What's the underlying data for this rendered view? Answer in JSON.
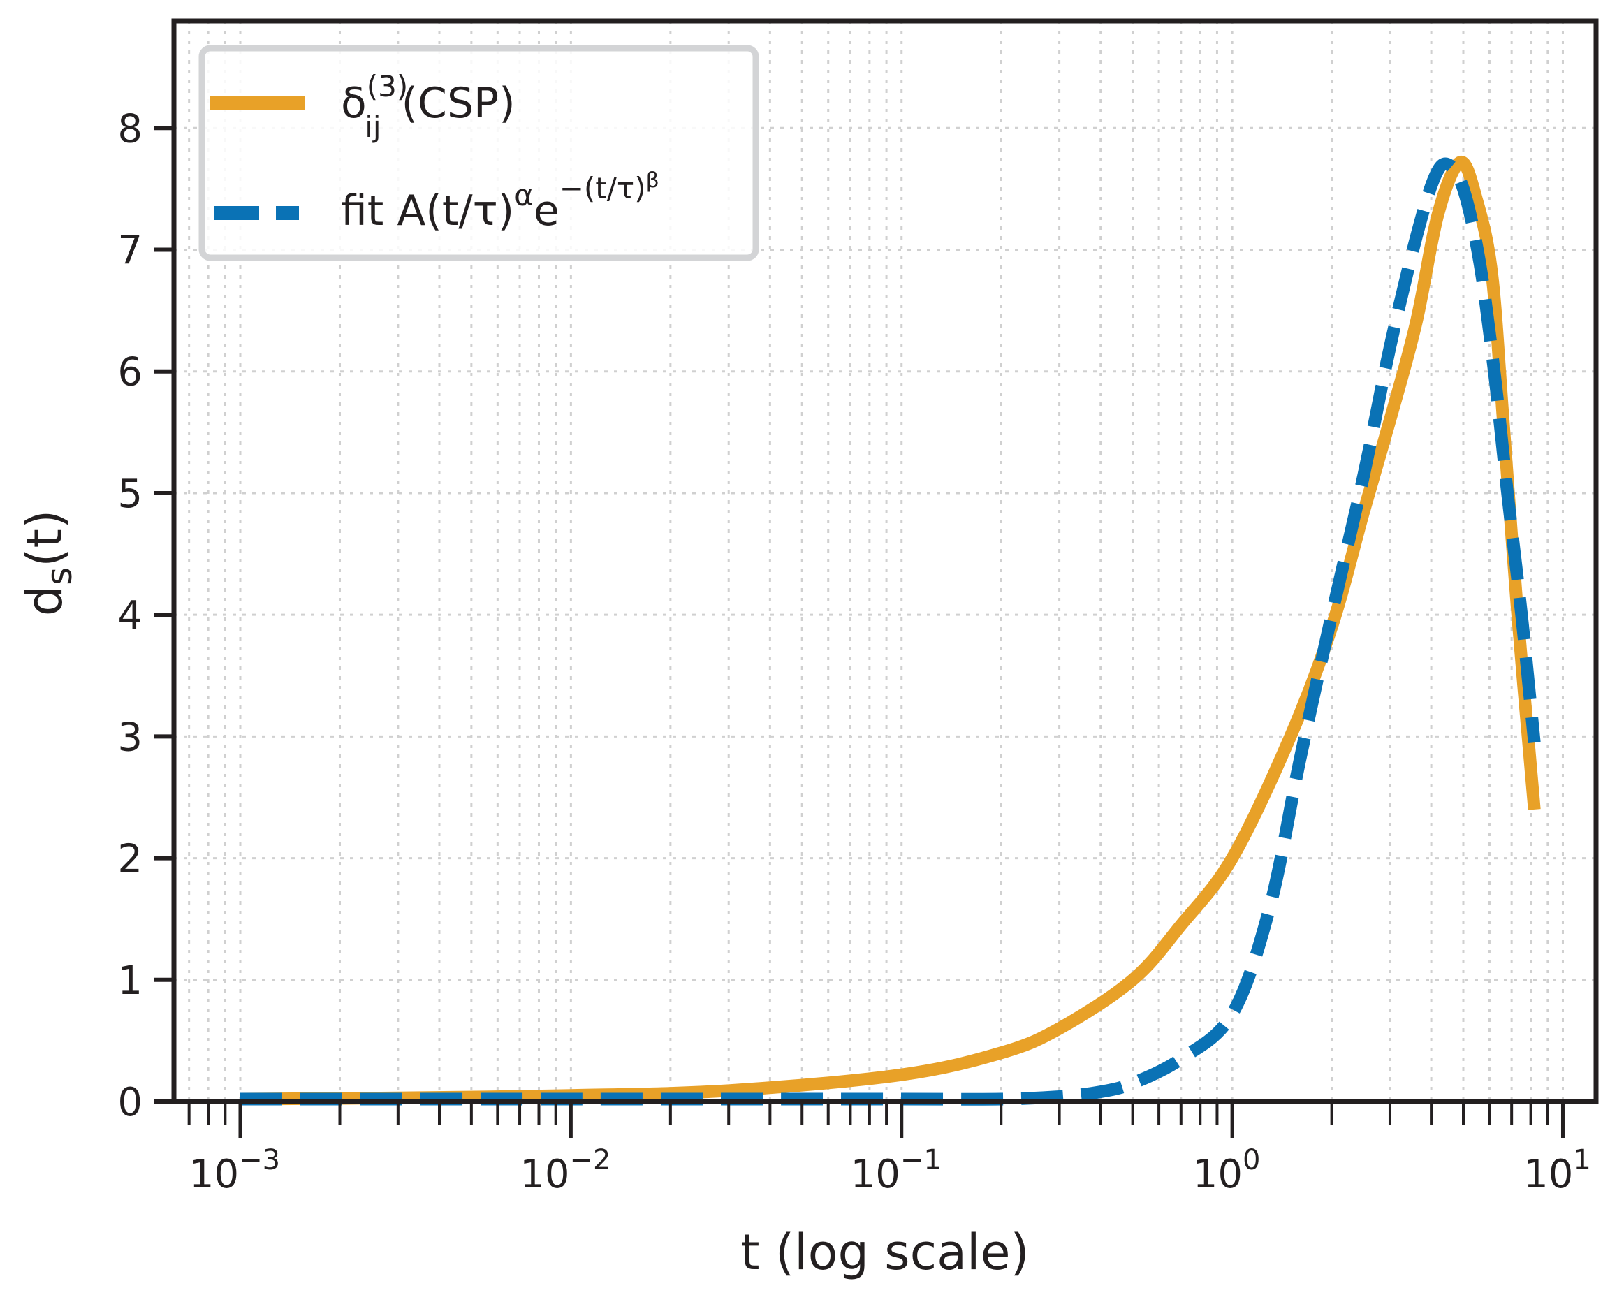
{
  "chart_data": {
    "type": "line",
    "xscale": "log",
    "xlabel": "t (log scale)",
    "ylabel": {
      "base": "d",
      "sub": "s",
      "rest": "(t)"
    },
    "xlim": [
      0.00063,
      12.6
    ],
    "ylim": [
      0,
      8.88
    ],
    "xticks": [
      {
        "value": 0.001,
        "base": "10",
        "exp": "−3"
      },
      {
        "value": 0.01,
        "base": "10",
        "exp": "−2"
      },
      {
        "value": 0.1,
        "base": "10",
        "exp": "−1"
      },
      {
        "value": 1,
        "base": "10",
        "exp": "0"
      },
      {
        "value": 10,
        "base": "10",
        "exp": "1"
      }
    ],
    "yticks": [
      "0",
      "1",
      "2",
      "3",
      "4",
      "5",
      "6",
      "7",
      "8"
    ],
    "grid": true,
    "legend_position": "top-left",
    "series": [
      {
        "name": "δ_ij^(3) (CSP)",
        "legend": {
          "main": "δ",
          "sub": "ij",
          "sup": "(3)",
          "rest": " (CSP)"
        },
        "color": "#E8A128",
        "style": "solid",
        "x": [
          0.001,
          0.003,
          0.01,
          0.03,
          0.1,
          0.2,
          0.3,
          0.5,
          0.7,
          1.0,
          1.5,
          2.0,
          2.5,
          3.0,
          3.6,
          4.2,
          4.9,
          5.5,
          6.1,
          6.6,
          7.3,
          8.2
        ],
        "y": [
          0.02,
          0.03,
          0.05,
          0.09,
          0.22,
          0.4,
          0.6,
          1.0,
          1.45,
          2.0,
          3.0,
          3.9,
          4.85,
          5.6,
          6.4,
          7.3,
          7.72,
          7.4,
          6.8,
          5.6,
          4.0,
          2.4
        ]
      },
      {
        "name": "fit A(t/τ)^α e^−(t/τ)^β",
        "legend": {
          "main": "fit A(t/τ)",
          "sup1": "α",
          "mid": "e",
          "sup2": "−(t/τ)",
          "sup3": "β"
        },
        "color": "#0A72B5",
        "style": "dashed",
        "x": [
          0.001,
          0.01,
          0.1,
          0.2,
          0.3,
          0.4,
          0.5,
          0.7,
          1.0,
          1.3,
          1.6,
          2.0,
          2.5,
          3.0,
          3.6,
          4.1,
          4.5,
          5.0,
          5.6,
          6.2,
          6.8,
          7.5,
          8.2
        ],
        "y": [
          0.02,
          0.02,
          0.02,
          0.02,
          0.04,
          0.08,
          0.15,
          0.35,
          0.72,
          1.6,
          2.8,
          4.0,
          5.15,
          6.2,
          7.1,
          7.6,
          7.7,
          7.5,
          6.9,
          6.0,
          5.0,
          4.0,
          2.95
        ]
      }
    ]
  }
}
